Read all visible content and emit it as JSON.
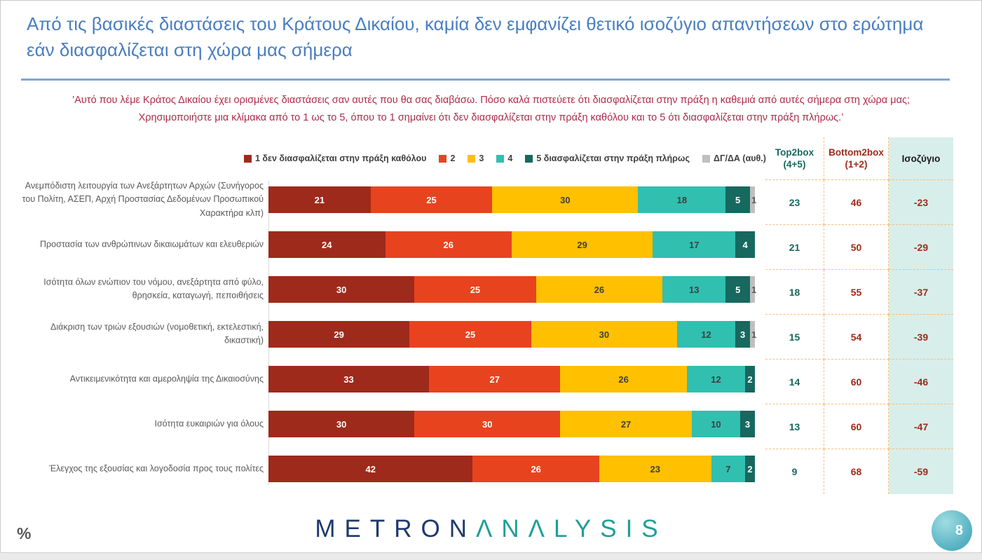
{
  "slide": {
    "title": "Από τις βασικές διαστάσεις του Κράτους Δικαίου, καμία δεν εμφανίζει θετικό ισοζύγιο απαντήσεων στο ερώτημα εάν διασφαλίζεται στη χώρα μας σήμερα",
    "question_line1": "’Αυτό που λέμε Κράτος Δικαίου έχει ορισμένες διαστάσεις σαν αυτές που θα σας διαβάσω. Πόσο καλά πιστεύετε ότι διασφαλίζεται στην πράξη η καθεμιά από αυτές σήμερα στη χώρα μας;",
    "question_line2": "Χρησιμοποιήστε μια κλίμακα από το 1 ως το 5, όπου το 1 σημαίνει ότι δεν διασφαλίζεται στην πράξη καθόλου και το 5 ότι διασφαλίζεται στην πράξη πλήρως.’",
    "footer_percent": "%",
    "logo": {
      "part1": "METRON",
      "part2": "ΛNΛLYSIS"
    },
    "page_number": "8"
  },
  "colors": {
    "title_blue": "#4a7ec1",
    "question_red": "#b12a4b",
    "label_gray": "#595959",
    "table_border_dashed": "#f6be7f",
    "balance_column_bg": "#d8eeea",
    "top2box_teal": "#17685f",
    "bottom2box_red": "#9e2b1c",
    "logo_navy": "#1e3a6e",
    "logo_teal": "#1fa098"
  },
  "table": {
    "headers": [
      {
        "line1": "Top2box",
        "line2": "(4+5)"
      },
      {
        "line1": "Bottom2box",
        "line2": "(1+2)"
      },
      {
        "line1": "Ισοζύγιο",
        "line2": ""
      }
    ]
  },
  "chart_data": {
    "type": "bar",
    "orientation": "horizontal-stacked",
    "unit": "%",
    "xlim": [
      0,
      100
    ],
    "series_labels": [
      "1  δεν διασφαλίζεται στην πράξη καθόλου",
      "2",
      "3",
      "4",
      "5 διασφαλίζεται στην πράξη πλήρως",
      "ΔΓ/ΔΑ (αυθ.)"
    ],
    "series_colors": [
      "#9e2a1b",
      "#e8431f",
      "#ffc000",
      "#31bfb0",
      "#17685f",
      "#bfbfbf"
    ],
    "categories": [
      "Ανεμπόδιστη λειτουργία των Ανεξάρτητων Αρχών (Συνήγορος του Πολίτη, ΑΣΕΠ, Αρχή Προστασίας Δεδομένων Προσωπικού Χαρακτήρα κλπ)",
      "Προστασία των ανθρώπινων δικαιωμάτων και ελευθεριών",
      "Ισότητα όλων ενώπιον του νόμου, ανεξάρτητα από φύλο, θρησκεία, καταγωγή, πεποιθήσεις",
      "Διάκριση των τριών εξουσιών (νομοθετική, εκτελεστική, δικαστική)",
      "Αντικειμενικότητα και αμεροληψία της Δικαιοσύνης",
      "Ισότητα ευκαιριών για όλους",
      "Έλεγχος της εξουσίας και λογοδοσία προς τους πολίτες"
    ],
    "rows": [
      {
        "values": [
          21,
          25,
          30,
          18,
          5,
          1
        ],
        "top2box": 23,
        "bottom2box": 46,
        "balance": -23
      },
      {
        "values": [
          24,
          26,
          29,
          17,
          4,
          0
        ],
        "top2box": 21,
        "bottom2box": 50,
        "balance": -29
      },
      {
        "values": [
          30,
          25,
          26,
          13,
          5,
          1
        ],
        "top2box": 18,
        "bottom2box": 55,
        "balance": -37
      },
      {
        "values": [
          29,
          25,
          30,
          12,
          3,
          1
        ],
        "top2box": 15,
        "bottom2box": 54,
        "balance": -39
      },
      {
        "values": [
          33,
          27,
          26,
          12,
          2,
          0
        ],
        "top2box": 14,
        "bottom2box": 60,
        "balance": -46
      },
      {
        "values": [
          30,
          30,
          27,
          10,
          3,
          0
        ],
        "top2box": 13,
        "bottom2box": 60,
        "balance": -47
      },
      {
        "values": [
          42,
          26,
          23,
          7,
          2,
          0
        ],
        "top2box": 9,
        "bottom2box": 68,
        "balance": -59
      }
    ]
  }
}
